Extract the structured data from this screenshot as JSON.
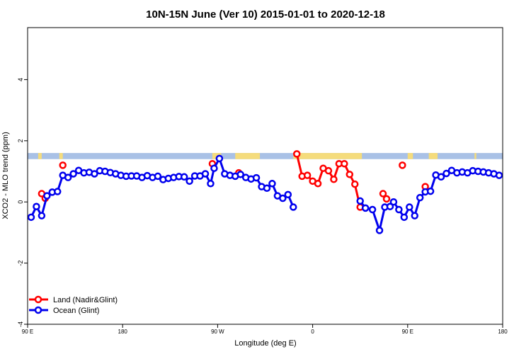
{
  "chart_data": {
    "type": "line",
    "title": "10N-15N June (Ver 10)   2015-01-01 to 2020-12-18",
    "xlabel": "Longitude (deg E)",
    "ylabel": "XCO2 - MLO trend (ppm)",
    "xlim": [
      -90,
      180
    ],
    "ylim": [
      -4,
      5.7
    ],
    "x_ticks": [
      {
        "value": -90,
        "label": "90 E"
      },
      {
        "value": -36,
        "label": "180"
      },
      {
        "value": 18,
        "label": "90 W"
      },
      {
        "value": 72,
        "label": "0"
      },
      {
        "value": 126,
        "label": "90 E"
      },
      {
        "value": 180,
        "label": "180"
      }
    ],
    "y_ticks": [
      -4,
      -2,
      0,
      2,
      4
    ],
    "legend_position": "bottom-left",
    "land_band": {
      "y_range": [
        1.4,
        1.6
      ]
    },
    "series": [
      {
        "name": "Land (Nadir&Glint)",
        "color": "#ff0000",
        "points": [
          [
            -82,
            0.27
          ],
          [
            -80,
            0.12
          ],
          [
            -70,
            1.2
          ],
          [
            15,
            1.25
          ],
          [
            30,
            0.95
          ],
          [
            63,
            1.57
          ],
          [
            66,
            0.84
          ],
          [
            69,
            0.87
          ],
          [
            72,
            0.68
          ],
          [
            75,
            0.6
          ],
          [
            78,
            1.1
          ],
          [
            81,
            1.02
          ],
          [
            84,
            0.74
          ],
          [
            87,
            1.25
          ],
          [
            90,
            1.25
          ],
          [
            93,
            0.9
          ],
          [
            96,
            0.58
          ],
          [
            99,
            -0.17
          ],
          [
            136,
            0.5
          ],
          [
            112,
            0.27
          ],
          [
            114,
            0.1
          ],
          [
            123,
            1.2
          ]
        ]
      },
      {
        "name": "Ocean (Glint)",
        "color": "#0000ee",
        "points": [
          [
            -88,
            -0.5
          ],
          [
            -85,
            -0.15
          ],
          [
            -82,
            -0.45
          ],
          [
            -79,
            0.2
          ],
          [
            -76,
            0.32
          ],
          [
            -73,
            0.34
          ],
          [
            -70,
            0.87
          ],
          [
            -67,
            0.8
          ],
          [
            -64,
            0.92
          ],
          [
            -61,
            1.03
          ],
          [
            -58,
            0.95
          ],
          [
            -55,
            0.97
          ],
          [
            -52,
            0.92
          ],
          [
            -49,
            1.02
          ],
          [
            -46,
            1.0
          ],
          [
            -43,
            0.96
          ],
          [
            -40,
            0.92
          ],
          [
            -37,
            0.87
          ],
          [
            -34,
            0.84
          ],
          [
            -31,
            0.85
          ],
          [
            -28,
            0.85
          ],
          [
            -25,
            0.8
          ],
          [
            -22,
            0.86
          ],
          [
            -19,
            0.8
          ],
          [
            -16,
            0.84
          ],
          [
            -13,
            0.73
          ],
          [
            -10,
            0.77
          ],
          [
            -7,
            0.8
          ],
          [
            -4,
            0.83
          ],
          [
            -1,
            0.82
          ],
          [
            2,
            0.68
          ],
          [
            5,
            0.85
          ],
          [
            8,
            0.85
          ],
          [
            11,
            0.92
          ],
          [
            14,
            0.6
          ],
          [
            16,
            1.1
          ],
          [
            19,
            1.42
          ],
          [
            22,
            0.92
          ],
          [
            25,
            0.87
          ],
          [
            28,
            0.84
          ],
          [
            31,
            0.9
          ],
          [
            34,
            0.8
          ],
          [
            37,
            0.75
          ],
          [
            40,
            0.79
          ],
          [
            43,
            0.5
          ],
          [
            46,
            0.45
          ],
          [
            49,
            0.6
          ],
          [
            52,
            0.2
          ],
          [
            55,
            0.12
          ],
          [
            58,
            0.24
          ],
          [
            61,
            -0.17
          ],
          [
            99,
            0.03
          ],
          [
            102,
            -0.2
          ],
          [
            106,
            -0.25
          ],
          [
            110,
            -0.93
          ],
          [
            113,
            -0.17
          ],
          [
            116,
            -0.15
          ],
          [
            118,
            0.0
          ],
          [
            121,
            -0.25
          ],
          [
            124,
            -0.5
          ],
          [
            127,
            -0.17
          ],
          [
            130,
            -0.45
          ],
          [
            133,
            0.14
          ],
          [
            136,
            0.33
          ],
          [
            139,
            0.35
          ],
          [
            142,
            0.88
          ],
          [
            145,
            0.82
          ],
          [
            148,
            0.93
          ],
          [
            151,
            1.03
          ],
          [
            154,
            0.95
          ],
          [
            157,
            0.98
          ],
          [
            160,
            0.95
          ],
          [
            163,
            1.02
          ],
          [
            166,
            1.0
          ],
          [
            169,
            0.98
          ],
          [
            172,
            0.95
          ],
          [
            175,
            0.92
          ],
          [
            178,
            0.87
          ]
        ]
      }
    ]
  }
}
